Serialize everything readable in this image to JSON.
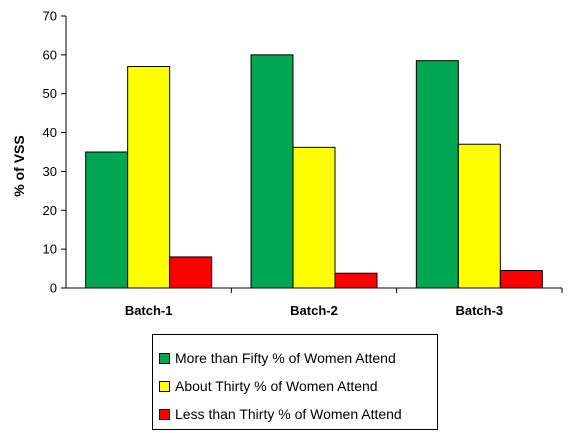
{
  "chart_data": {
    "type": "bar",
    "categories": [
      "Batch-1",
      "Batch-2",
      "Batch-3"
    ],
    "series": [
      {
        "name": "More than Fifty % of Women Attend",
        "color": "#00a651",
        "values": [
          35,
          60,
          58.5
        ]
      },
      {
        "name": "About Thirty % of Women Attend",
        "color": "#ffff00",
        "values": [
          57,
          36.2,
          37
        ]
      },
      {
        "name": "Less than Thirty % of Women Attend",
        "color": "#ff0000",
        "values": [
          8,
          3.8,
          4.5
        ]
      }
    ],
    "ylabel": "% of VSS",
    "ylim": [
      0,
      70
    ],
    "yticks": [
      0,
      10,
      20,
      30,
      40,
      50,
      60,
      70
    ],
    "grid": false,
    "legend_position": "bottom"
  }
}
